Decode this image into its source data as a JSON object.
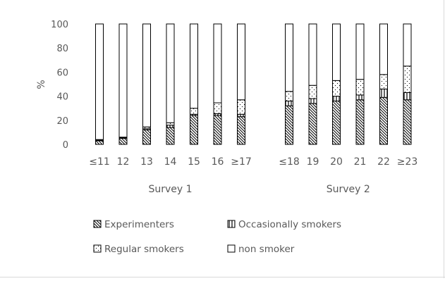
{
  "chart_data": {
    "type": "bar",
    "stacked": true,
    "percent_stacked": true,
    "ylabel": "%",
    "ylim": [
      0,
      100
    ],
    "yticks": [
      0,
      20,
      40,
      60,
      80,
      100
    ],
    "grid": false,
    "legend_position": "bottom",
    "groups": [
      {
        "name": "Survey 1",
        "categories": [
          "≤11",
          "12",
          "13",
          "14",
          "15",
          "16",
          "≥17"
        ]
      },
      {
        "name": "Survey 2",
        "categories": [
          "≤18",
          "19",
          "20",
          "21",
          "22",
          "≥23"
        ]
      }
    ],
    "categories": [
      "≤11",
      "12",
      "13",
      "14",
      "15",
      "16",
      "≥17",
      "≤18",
      "19",
      "20",
      "21",
      "22",
      "≥23"
    ],
    "series": [
      {
        "name": "Experimenters",
        "values": [
          3,
          5,
          12,
          14,
          24,
          24,
          23,
          32,
          34,
          36,
          37,
          39,
          37
        ]
      },
      {
        "name": "Occasionally smokers",
        "values": [
          0.5,
          0.5,
          1,
          2,
          1,
          1.5,
          2,
          4,
          4,
          4,
          4,
          7,
          6
        ]
      },
      {
        "name": "Regular smokers",
        "values": [
          0.5,
          0.5,
          1.5,
          2,
          5,
          9,
          12,
          8,
          11,
          13,
          13,
          12,
          22
        ]
      },
      {
        "name": "non smoker",
        "values": [
          96,
          94,
          85.5,
          82,
          70,
          65.5,
          63,
          56,
          51,
          47,
          46,
          42,
          35
        ]
      }
    ],
    "colors": {
      "stroke": "#000000",
      "text": "#595959",
      "frame": "#d9d9d9"
    }
  }
}
